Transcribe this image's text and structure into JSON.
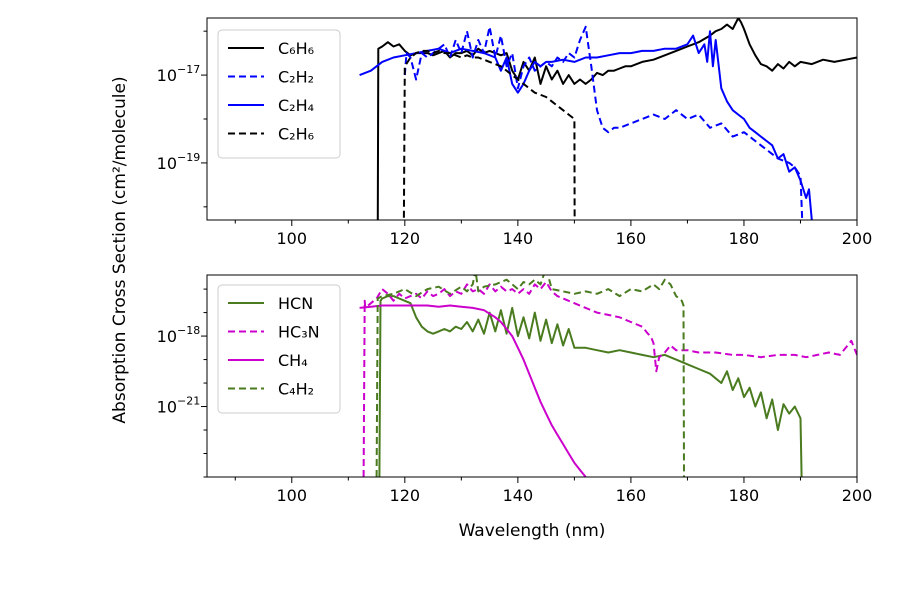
{
  "figure": {
    "ylabel": "Absorption Cross Section (cm²/molecule)",
    "xlabel": "Wavelength (nm)"
  },
  "chart_data": [
    {
      "type": "line",
      "id": "top",
      "xlim": [
        85,
        200
      ],
      "ylog_range": [
        -20.3,
        -15.7
      ],
      "xticks": [
        100,
        120,
        140,
        160,
        180,
        200
      ],
      "yticks": [
        {
          "exp": -17,
          "label": "10",
          "sup": "−17"
        },
        {
          "exp": -19,
          "label": "10",
          "sup": "−19"
        }
      ],
      "series": [
        {
          "name": "C₆H₆",
          "color": "#000000",
          "dash": "solid",
          "x": [
            115.2,
            115.3,
            116,
            117,
            118,
            119,
            120,
            121,
            122,
            123,
            124,
            125,
            126,
            127,
            128,
            129,
            130,
            131,
            132,
            133,
            134,
            135,
            136,
            137,
            138,
            139,
            140,
            141,
            142,
            143,
            144,
            145,
            146,
            147,
            148,
            149,
            150,
            151,
            152,
            153,
            154,
            155,
            156,
            157,
            158,
            159,
            160,
            162,
            164,
            166,
            168,
            170,
            172,
            174,
            175,
            176,
            177,
            178,
            179,
            179.5,
            180,
            181,
            182,
            183,
            184,
            185,
            186,
            187,
            188,
            189,
            190,
            192,
            194,
            196,
            198,
            200
          ],
          "y": [
            -21,
            -16.4,
            -16.35,
            -16.25,
            -16.35,
            -16.3,
            -16.45,
            -16.55,
            -16.5,
            -16.5,
            -16.5,
            -16.55,
            -16.5,
            -16.45,
            -16.6,
            -16.5,
            -16.5,
            -16.45,
            -16.55,
            -16.4,
            -16.5,
            -16.45,
            -16.5,
            -16.55,
            -16.5,
            -16.9,
            -17.1,
            -16.7,
            -16.9,
            -16.6,
            -17.2,
            -16.8,
            -17.1,
            -16.9,
            -17.2,
            -17,
            -17.2,
            -17.1,
            -17.2,
            -17.1,
            -16.95,
            -17.0,
            -16.9,
            -16.9,
            -16.85,
            -16.8,
            -16.8,
            -16.7,
            -16.65,
            -16.55,
            -16.45,
            -16.35,
            -16.25,
            -16.1,
            -16.0,
            -15.95,
            -15.85,
            -15.95,
            -15.7,
            -15.8,
            -15.95,
            -16.3,
            -16.55,
            -16.75,
            -16.8,
            -16.9,
            -16.75,
            -16.85,
            -16.7,
            -16.8,
            -16.7,
            -16.75,
            -16.65,
            -16.7,
            -16.65,
            -16.6
          ]
        },
        {
          "name": "C₂H₂",
          "color": "#0000ff",
          "dash": "dashed",
          "x": [
            120,
            120.3,
            121,
            122,
            123,
            124,
            125,
            126,
            127,
            128,
            129,
            130,
            131,
            132,
            133,
            134,
            135,
            136,
            137,
            138,
            139,
            140,
            141,
            142,
            143,
            144,
            145,
            146,
            147,
            148,
            149,
            150,
            151,
            152,
            153,
            154,
            155,
            156,
            157,
            158,
            160,
            162,
            164,
            166,
            168,
            170,
            172,
            174,
            176,
            178,
            180,
            182,
            184,
            186,
            188,
            189,
            190,
            190.3
          ],
          "y": [
            -17,
            -16.5,
            -16.6,
            -17.1,
            -16.5,
            -16.6,
            -16.5,
            -16.4,
            -16.3,
            -16.6,
            -16.2,
            -16.5,
            -16,
            -16.6,
            -16.2,
            -16.5,
            -15.9,
            -16.6,
            -16.1,
            -16.8,
            -16.5,
            -17.3,
            -16.8,
            -16.6,
            -16.9,
            -16.8,
            -16.7,
            -16.8,
            -16.6,
            -16.7,
            -16.5,
            -16.6,
            -16.2,
            -15.9,
            -16.8,
            -17.8,
            -18.2,
            -18.3,
            -18.2,
            -18.2,
            -18.1,
            -18.0,
            -17.9,
            -18.0,
            -17.8,
            -18.0,
            -17.9,
            -18.2,
            -18.1,
            -18.4,
            -18.3,
            -18.5,
            -18.7,
            -18.9,
            -19.0,
            -19.1,
            -19.3,
            -20.3
          ]
        },
        {
          "name": "C₂H₄",
          "color": "#0000ff",
          "dash": "solid",
          "x": [
            112,
            114,
            116,
            118,
            120,
            122,
            124,
            126,
            128,
            130,
            132,
            134,
            136,
            137,
            138,
            139,
            140,
            141,
            142,
            143,
            144,
            145,
            146,
            148,
            150,
            152,
            154,
            156,
            158,
            160,
            162,
            164,
            166,
            168,
            170,
            171,
            172,
            173,
            173.5,
            174,
            174.5,
            175,
            176,
            177,
            178,
            179,
            180,
            181,
            182,
            183,
            184,
            185,
            186,
            187,
            188,
            189,
            190,
            191,
            191.5,
            192
          ],
          "y": [
            -17,
            -16.9,
            -16.7,
            -16.6,
            -16.55,
            -16.5,
            -16.45,
            -16.4,
            -16.5,
            -16.4,
            -16.45,
            -16.5,
            -16.6,
            -16.9,
            -16.6,
            -17.2,
            -17.4,
            -17.2,
            -16.9,
            -16.7,
            -16.8,
            -16.7,
            -16.7,
            -16.65,
            -16.7,
            -16.6,
            -16.6,
            -16.55,
            -16.5,
            -16.5,
            -16.45,
            -16.45,
            -16.4,
            -16.4,
            -16.3,
            -16.1,
            -16.5,
            -16.3,
            -16.7,
            -16.0,
            -16.8,
            -16.2,
            -17.3,
            -17.6,
            -17.8,
            -17.9,
            -18.0,
            -18.2,
            -18.3,
            -18.4,
            -18.5,
            -18.6,
            -18.9,
            -18.8,
            -19.2,
            -19.1,
            -19.4,
            -19.8,
            -19.6,
            -20.3
          ]
        },
        {
          "name": "C₂H₆",
          "color": "#000000",
          "dash": "dashed",
          "x": [
            119.8,
            120,
            121,
            122,
            123,
            124,
            125,
            126,
            127,
            128,
            129,
            130,
            131,
            132,
            133,
            134,
            135,
            136,
            137,
            138,
            139,
            140,
            141,
            142,
            143,
            144,
            145,
            146,
            147,
            148,
            149,
            150,
            150.05
          ],
          "y": [
            -21,
            -16.8,
            -16.6,
            -16.5,
            -16.45,
            -16.45,
            -16.5,
            -16.45,
            -16.5,
            -16.5,
            -16.55,
            -16.6,
            -16.55,
            -16.6,
            -16.6,
            -16.65,
            -16.7,
            -16.75,
            -16.8,
            -16.9,
            -17.0,
            -17.1,
            -17.2,
            -17.3,
            -17.4,
            -17.45,
            -17.5,
            -17.6,
            -17.7,
            -17.8,
            -17.9,
            -18.0,
            -21
          ]
        }
      ]
    },
    {
      "type": "line",
      "id": "bottom",
      "xlim": [
        85,
        200
      ],
      "ylog_range": [
        -24,
        -15.4
      ],
      "xticks": [
        100,
        120,
        140,
        160,
        180,
        200
      ],
      "yticks": [
        {
          "exp": -18,
          "label": "10",
          "sup": "−18"
        },
        {
          "exp": -21,
          "label": "10",
          "sup": "−21"
        }
      ],
      "series": [
        {
          "name": "HCN",
          "color": "#4a7b1f",
          "dash": "solid",
          "x": [
            115.5,
            115.7,
            116,
            117,
            118,
            119,
            120,
            121,
            122,
            123,
            124,
            125,
            126,
            127,
            128,
            129,
            130,
            131,
            132,
            133,
            134,
            135,
            136,
            137,
            138,
            139,
            140,
            141,
            142,
            143,
            144,
            145,
            146,
            147,
            148,
            149,
            150,
            152,
            154,
            156,
            158,
            160,
            162,
            164,
            166,
            168,
            170,
            172,
            174,
            176,
            177,
            178,
            179,
            180,
            181,
            182,
            183,
            184,
            185,
            186,
            187,
            188,
            189,
            190,
            190.2
          ],
          "y": [
            -24,
            -16.5,
            -16.4,
            -16.3,
            -16.3,
            -16.4,
            -16.5,
            -16.6,
            -17.2,
            -17.6,
            -17.8,
            -17.9,
            -17.8,
            -17.7,
            -17.8,
            -17.6,
            -17.7,
            -17.4,
            -17.8,
            -17.3,
            -17.9,
            -17.0,
            -17.8,
            -16.9,
            -17.9,
            -16.8,
            -18.0,
            -17.2,
            -18.1,
            -17.0,
            -18.2,
            -17.3,
            -18.3,
            -17.5,
            -18.4,
            -17.7,
            -18.5,
            -18.5,
            -18.6,
            -18.7,
            -18.6,
            -18.7,
            -18.8,
            -18.9,
            -18.8,
            -19.0,
            -19.2,
            -19.4,
            -19.6,
            -20.0,
            -19.5,
            -20.3,
            -19.8,
            -20.6,
            -20.2,
            -21.0,
            -20.4,
            -21.5,
            -20.7,
            -22.0,
            -20.9,
            -21.3,
            -21.0,
            -21.5,
            -24
          ]
        },
        {
          "name": "HC₃N",
          "color": "#cc00cc",
          "dash": "dashed",
          "x": [
            112.7,
            112.9,
            113,
            114,
            115,
            116,
            117,
            118,
            119,
            120,
            121,
            122,
            123,
            124,
            125,
            126,
            127,
            128,
            129,
            130,
            131,
            132,
            133,
            134,
            135,
            136,
            137,
            138,
            139,
            140,
            141,
            142,
            143,
            144,
            145,
            146,
            147,
            148,
            149,
            150,
            152,
            154,
            156,
            158,
            160,
            162,
            163,
            163.5,
            164,
            164.5,
            165,
            166,
            167,
            168,
            170,
            172,
            175,
            178,
            180,
            183,
            186,
            189,
            191,
            193,
            195,
            197,
            199,
            200
          ],
          "y": [
            -24,
            -16.5,
            -16.8,
            -16.6,
            -16.4,
            -16.0,
            -16.2,
            -16.5,
            -16.2,
            -16.4,
            -16.3,
            -16.2,
            -16.4,
            -16.1,
            -16.3,
            -16.2,
            -16.0,
            -16.3,
            -16.1,
            -16.2,
            -15.8,
            -16.1,
            -16.0,
            -16.2,
            -15.8,
            -16.1,
            -15.9,
            -16.1,
            -16.0,
            -16.2,
            -16.0,
            -16.2,
            -15.8,
            -16.0,
            -15.7,
            -16.1,
            -16.3,
            -16.4,
            -16.5,
            -16.6,
            -16.8,
            -17.0,
            -17.1,
            -17.2,
            -17.4,
            -17.6,
            -17.9,
            -18.0,
            -18.3,
            -19.5,
            -18.9,
            -18.7,
            -18.4,
            -18.6,
            -18.6,
            -18.7,
            -18.7,
            -18.8,
            -18.8,
            -18.9,
            -18.8,
            -18.8,
            -18.9,
            -18.8,
            -18.7,
            -18.8,
            -18.2,
            -18.8
          ]
        },
        {
          "name": "CH₄",
          "color": "#cc00cc",
          "dash": "solid",
          "x": [
            112,
            114,
            116,
            118,
            120,
            122,
            124,
            126,
            128,
            130,
            132,
            134,
            136,
            137,
            138,
            139,
            140,
            141,
            142,
            143,
            144,
            145,
            146,
            147,
            148,
            149,
            150,
            151,
            152
          ],
          "y": [
            -16.8,
            -16.75,
            -16.7,
            -16.7,
            -16.7,
            -16.7,
            -16.7,
            -16.75,
            -16.7,
            -16.75,
            -16.8,
            -16.9,
            -17.2,
            -17.4,
            -17.7,
            -18.0,
            -18.5,
            -19.0,
            -19.6,
            -20.2,
            -20.8,
            -21.3,
            -21.8,
            -22.2,
            -22.6,
            -23.0,
            -23.4,
            -23.7,
            -24
          ]
        },
        {
          "name": "C₄H₂",
          "color": "#4a7b1f",
          "dash": "dashed",
          "x": [
            115,
            115.2,
            116,
            118,
            120,
            122,
            124,
            126,
            128,
            130,
            131,
            132,
            132.5,
            133,
            134,
            136,
            138,
            140,
            141,
            142,
            143,
            144,
            145,
            146,
            148,
            150,
            152,
            154,
            156,
            158,
            160,
            162,
            164,
            165,
            166,
            167,
            168,
            169,
            169.3,
            169.4
          ],
          "y": [
            -24,
            -16.4,
            -16.3,
            -16.2,
            -16.0,
            -16.3,
            -16.0,
            -15.9,
            -16.2,
            -15.9,
            -16.1,
            -15.8,
            -15.2,
            -16.1,
            -15.9,
            -15.8,
            -15.6,
            -16.0,
            -15.7,
            -15.8,
            -15.6,
            -15.8,
            -15.1,
            -16.0,
            -16.1,
            -16.2,
            -16.1,
            -16.2,
            -16.0,
            -16.3,
            -16.0,
            -16.1,
            -15.8,
            -16.0,
            -15.6,
            -15.8,
            -16.3,
            -16.5,
            -16.7,
            -24
          ]
        }
      ]
    }
  ]
}
